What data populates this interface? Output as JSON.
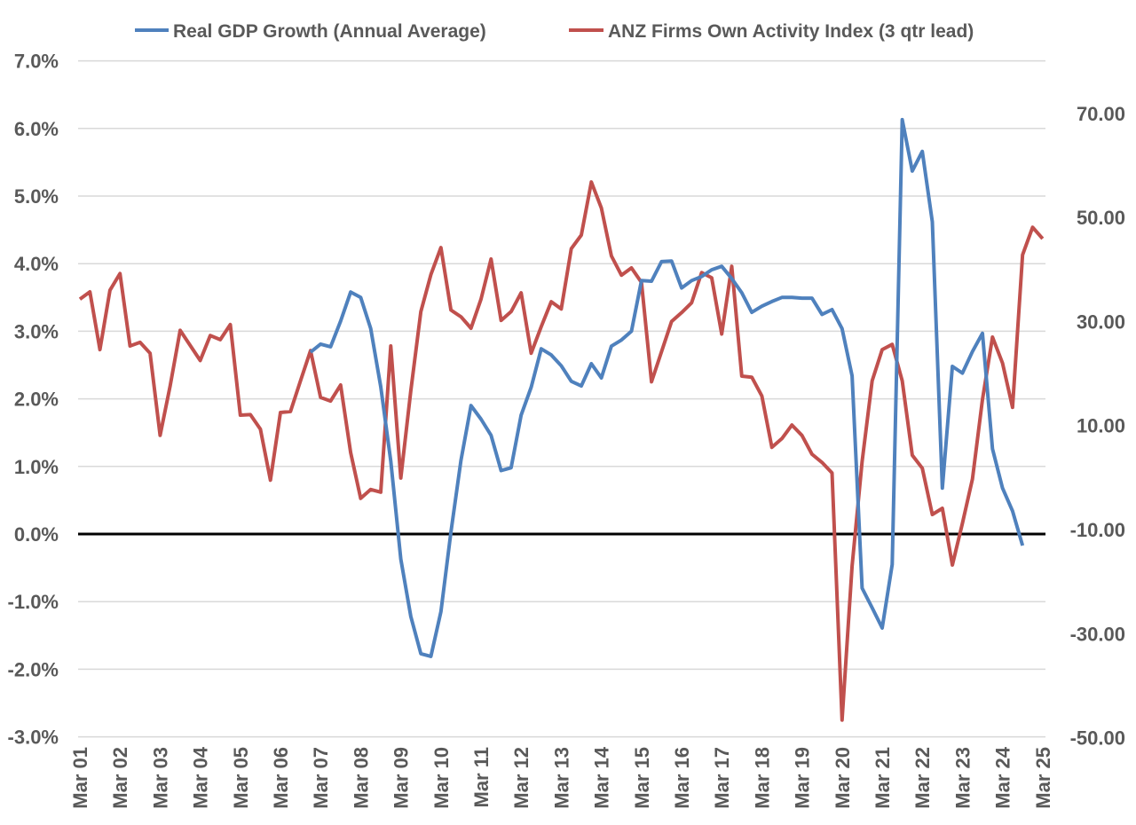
{
  "chart_data": {
    "type": "line",
    "title": "",
    "legend_position": "top",
    "grid": true,
    "x_tick_labels": [
      "Mar 01",
      "Mar 02",
      "Mar 03",
      "Mar 04",
      "Mar 05",
      "Mar 06",
      "Mar 07",
      "Mar 08",
      "Mar 09",
      "Mar 10",
      "Mar 11",
      "Mar 12",
      "Mar 13",
      "Mar 14",
      "Mar 15",
      "Mar 16",
      "Mar 17",
      "Mar 18",
      "Mar 19",
      "Mar 20",
      "Mar 21",
      "Mar 22",
      "Mar 23",
      "Mar 24",
      "Mar 25"
    ],
    "x_frequency": "quarterly",
    "y_left": {
      "ylim": [
        -3,
        7
      ],
      "ticks": [
        "-3.0%",
        "-2.0%",
        "-1.0%",
        "0.0%",
        "1.0%",
        "2.0%",
        "3.0%",
        "4.0%",
        "5.0%",
        "6.0%",
        "7.0%"
      ],
      "tick_values": [
        -3,
        -2,
        -1,
        0,
        1,
        2,
        3,
        4,
        5,
        6,
        7
      ],
      "unit": "%"
    },
    "y_right": {
      "ylim": [
        -50,
        85
      ],
      "ticks": [
        "-50.00",
        "-30.00",
        "-10.00",
        "10.00",
        "30.00",
        "50.00",
        "70.00"
      ],
      "tick_values": [
        -50,
        -30,
        -10,
        10,
        30,
        50,
        70
      ]
    },
    "series": [
      {
        "name": "Real GDP Growth (Annual Average)",
        "axis": "left",
        "color": "#4F81BD",
        "values": [
          null,
          null,
          null,
          null,
          null,
          null,
          null,
          null,
          null,
          null,
          null,
          null,
          null,
          null,
          null,
          null,
          null,
          null,
          null,
          null,
          null,
          null,
          null,
          2.69,
          2.81,
          2.77,
          3.15,
          3.58,
          3.5,
          3.04,
          2.18,
          1.08,
          -0.37,
          -1.22,
          -1.77,
          -1.81,
          -1.15,
          0.03,
          1.09,
          1.9,
          1.7,
          1.46,
          0.94,
          0.98,
          1.76,
          2.17,
          2.74,
          2.65,
          2.49,
          2.26,
          2.19,
          2.52,
          2.31,
          2.78,
          2.87,
          3.0,
          3.75,
          3.74,
          4.03,
          4.04,
          3.64,
          3.75,
          3.81,
          3.91,
          3.96,
          3.78,
          3.57,
          3.28,
          3.37,
          3.44,
          3.5,
          3.5,
          3.49,
          3.49,
          3.25,
          3.32,
          3.04,
          2.34,
          -0.8,
          -1.09,
          -1.39,
          -0.45,
          6.13,
          5.37,
          5.66,
          4.62,
          0.68,
          2.48,
          2.38,
          2.7,
          2.97,
          1.26,
          0.68,
          0.34,
          -0.17,
          null,
          null
        ]
      },
      {
        "name": "ANZ Firms Own Activity Index (3 qtr lead)",
        "axis": "right",
        "color": "#C0504D",
        "values": [
          34.3,
          35.7,
          24.6,
          36,
          39.2,
          25.3,
          26,
          23.9,
          8.1,
          17.6,
          28.3,
          25.4,
          22.5,
          27.3,
          26.5,
          29.4,
          12,
          12.1,
          9.3,
          -0.5,
          12.5,
          12.7,
          18.6,
          24.4,
          15.4,
          14.7,
          17.8,
          4.8,
          -4,
          -2.3,
          -2.8,
          25.3,
          -0.1,
          16.7,
          31.9,
          39,
          44.2,
          32.2,
          30.9,
          28.7,
          34.3,
          42,
          30.2,
          31.9,
          35.5,
          23.9,
          29,
          33.8,
          32.4,
          44,
          46.6,
          56.8,
          51.8,
          42.6,
          38.9,
          40.3,
          37.5,
          18.4,
          24.2,
          30,
          31.7,
          33.6,
          39.4,
          38.4,
          27.6,
          40.6,
          19.5,
          19.3,
          15.7,
          5.8,
          7.5,
          10.1,
          8.1,
          4.5,
          2.9,
          0.9,
          -46.6,
          -17,
          3.1,
          18.6,
          24.6,
          25.6,
          18.6,
          4.3,
          1.8,
          -7.1,
          -5.9,
          -16.8,
          -8.8,
          -0.3,
          15,
          27,
          22,
          13.5,
          42.8,
          48.1,
          45.9
        ]
      }
    ]
  }
}
